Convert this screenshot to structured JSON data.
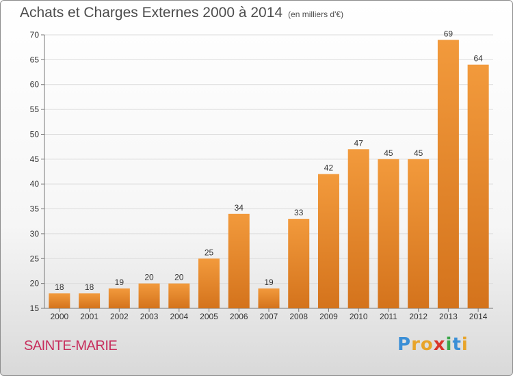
{
  "header": {
    "title": "Achats et Charges Externes 2000 à 2014",
    "subtitle": "(en milliers d'€)"
  },
  "footer": {
    "place": "SAINTE-MARIE",
    "logo_letters": [
      {
        "ch": "P",
        "color": "#3b8fd6"
      },
      {
        "ch": "r",
        "color": "#e8a42a"
      },
      {
        "ch": "o",
        "color": "#e8a42a"
      },
      {
        "ch": "x",
        "color": "#d9352b"
      },
      {
        "ch": "i",
        "color": "#3aa64a"
      },
      {
        "ch": "t",
        "color": "#3b8fd6"
      },
      {
        "ch": "i",
        "color": "#e8a42a"
      }
    ]
  },
  "chart_data": {
    "type": "bar",
    "title": "Achats et Charges Externes 2000 à 2014",
    "subtitle": "(en milliers d'€)",
    "categories": [
      "2000",
      "2001",
      "2002",
      "2003",
      "2004",
      "2005",
      "2006",
      "2007",
      "2008",
      "2009",
      "2010",
      "2011",
      "2012",
      "2013",
      "2014"
    ],
    "values": [
      18,
      18,
      19,
      20,
      20,
      25,
      34,
      19,
      33,
      42,
      47,
      45,
      45,
      69,
      64
    ],
    "ylim": [
      15,
      70
    ],
    "yticks": [
      15,
      20,
      25,
      30,
      35,
      40,
      45,
      50,
      55,
      60,
      65,
      70
    ],
    "grid": true,
    "bar_color": "#f29a3c",
    "bar_color_dark": "#d4731c"
  }
}
